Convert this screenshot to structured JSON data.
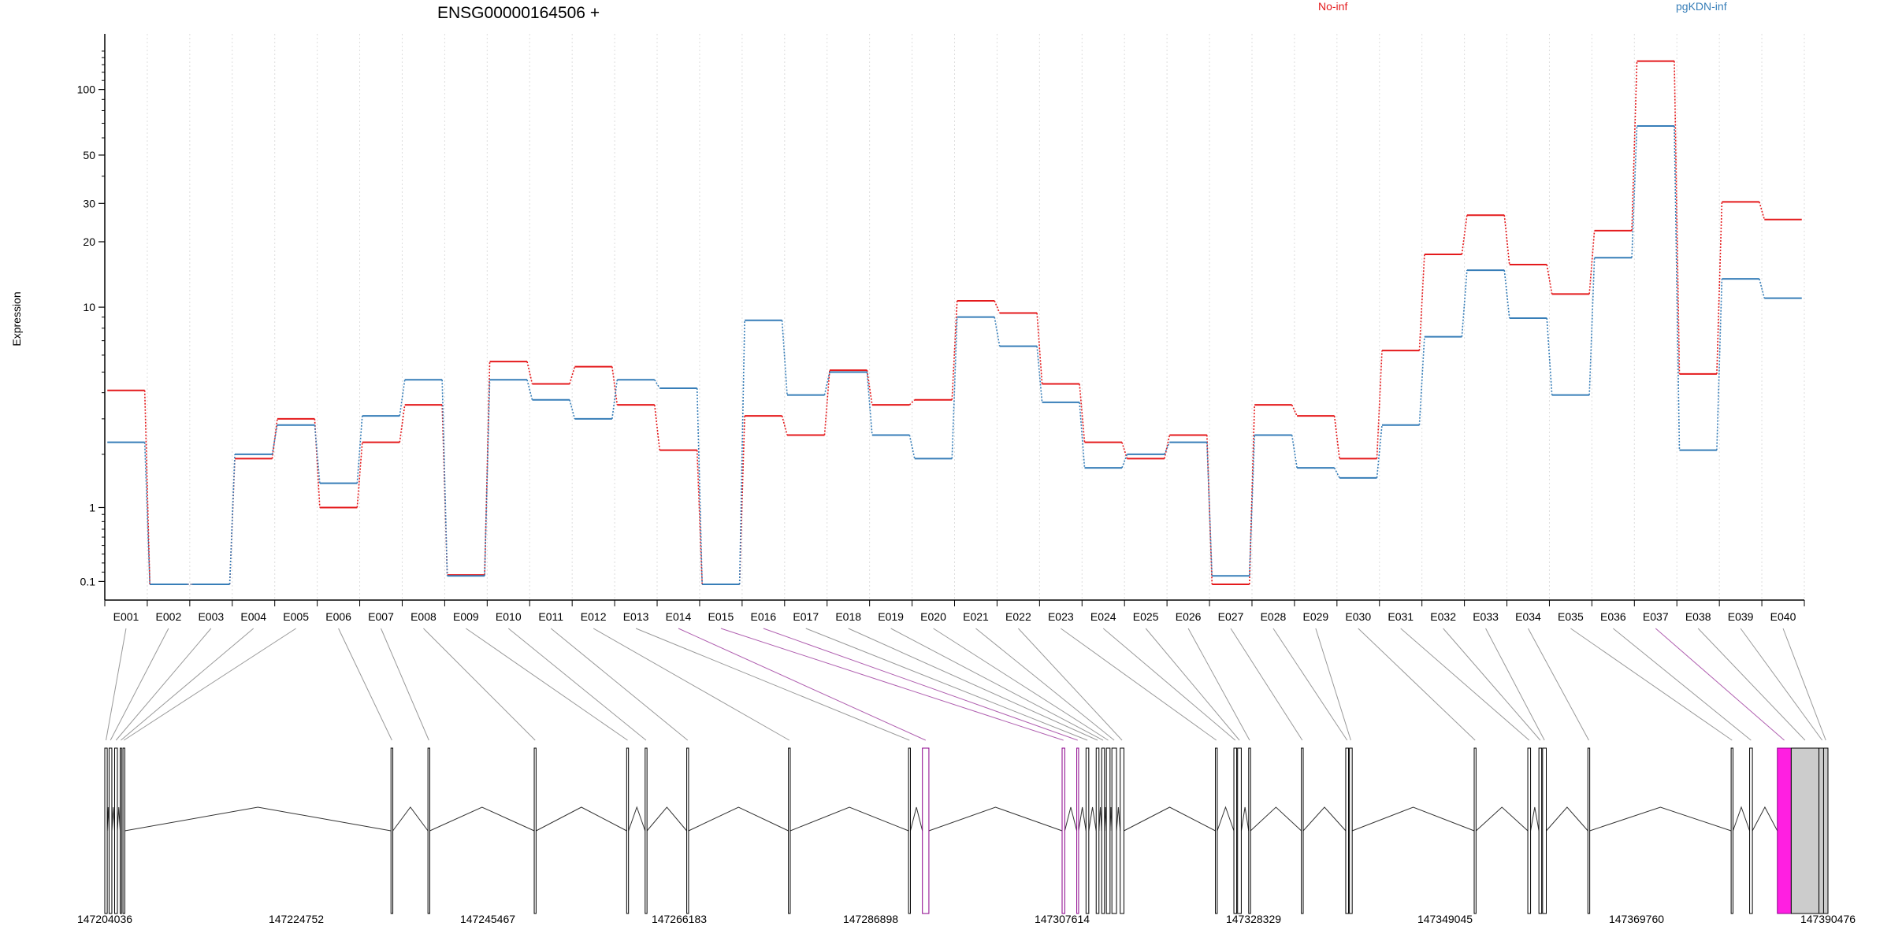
{
  "chart_data": {
    "type": "line",
    "title": "ENSG00000164506 +",
    "ylabel": "Expression",
    "xlabel": "",
    "y_scale": "log-like (arcsinh)",
    "y_ticks": [
      "0.1",
      "1",
      "10",
      "20",
      "30",
      "50",
      "100"
    ],
    "y_tick_values": [
      0.1,
      1,
      10,
      20,
      30,
      50,
      100
    ],
    "ylim": [
      0.07,
      180
    ],
    "grid": "vertical dotted gridlines at each exon",
    "legend_placement": "top",
    "categories": [
      "E001",
      "E002",
      "E003",
      "E004",
      "E005",
      "E006",
      "E007",
      "E008",
      "E009",
      "E010",
      "E011",
      "E012",
      "E013",
      "E014",
      "E015",
      "E016",
      "E017",
      "E018",
      "E019",
      "E020",
      "E021",
      "E022",
      "E023",
      "E024",
      "E025",
      "E026",
      "E027",
      "E028",
      "E029",
      "E030",
      "E031",
      "E032",
      "E033",
      "E034",
      "E035",
      "E036",
      "E037",
      "E038",
      "E039",
      "E040"
    ],
    "series": [
      {
        "name": "No-inf",
        "color": "#e41a1c",
        "values": [
          4.1,
          0.07,
          0.07,
          1.9,
          3.0,
          1.0,
          2.3,
          3.5,
          0.17,
          5.6,
          4.4,
          5.3,
          3.5,
          2.1,
          0.07,
          3.1,
          2.5,
          5.1,
          3.5,
          3.7,
          10.7,
          9.4,
          4.4,
          2.3,
          1.9,
          2.5,
          0.07,
          3.5,
          3.1,
          1.9,
          6.3,
          17.5,
          26.5,
          15.7,
          11.5,
          22.5,
          135,
          4.9,
          30.5,
          25.3
        ]
      },
      {
        "name": "pgKDN-inf",
        "color": "#377eb8",
        "values": [
          2.3,
          0.07,
          0.07,
          2.0,
          2.8,
          1.4,
          3.1,
          4.6,
          0.16,
          4.6,
          3.7,
          3.0,
          4.6,
          4.2,
          0.07,
          8.7,
          3.9,
          5.0,
          2.5,
          1.9,
          9.0,
          6.6,
          3.6,
          1.7,
          2.0,
          2.3,
          0.16,
          2.5,
          1.7,
          1.5,
          2.8,
          7.3,
          14.8,
          8.9,
          3.9,
          16.9,
          68,
          2.1,
          13.5,
          11.0
        ]
      }
    ],
    "gene_model": {
      "coordinate_labels": [
        "147204036",
        "147224752",
        "147245467",
        "147266183",
        "147286898",
        "147307614",
        "147328329",
        "147349045",
        "147369760",
        "147390476"
      ],
      "coordinate_range": [
        147204036,
        147390476
      ],
      "exon_starts": [
        147204036,
        147204500,
        147205100,
        147205700,
        147206000,
        147235000,
        147239000,
        147250500,
        147260500,
        147262500,
        147267000,
        147278000,
        147291000,
        147292500,
        147307614,
        147309200,
        147310200,
        147311300,
        147311900,
        147312400,
        147313000,
        147313900,
        147324200,
        147326200,
        147326600,
        147327800,
        147333500,
        147338300,
        147338700,
        147352200,
        147358000,
        147359200,
        147359600,
        147364500,
        147380000,
        147382000,
        147385000,
        147386500,
        147389500,
        147390000
      ],
      "exon_ends": [
        147204300,
        147204800,
        147205400,
        147205850,
        147206200,
        147235200,
        147239200,
        147250700,
        147260700,
        147262700,
        147267200,
        147278200,
        147291200,
        147293200,
        147307900,
        147309400,
        147310500,
        147311600,
        147312200,
        147312800,
        147313500,
        147314300,
        147324400,
        147326500,
        147327000,
        147328000,
        147333700,
        147338600,
        147339000,
        147352400,
        147358300,
        147359500,
        147360000,
        147364700,
        147380200,
        147382300,
        147386500,
        147389500,
        147390200,
        147390476
      ],
      "highlighted_exons": [
        "E014",
        "E015",
        "E016",
        "E037"
      ],
      "highlight_color": "#ff1fe1",
      "neutral_exon_color": "#cccccc"
    }
  }
}
